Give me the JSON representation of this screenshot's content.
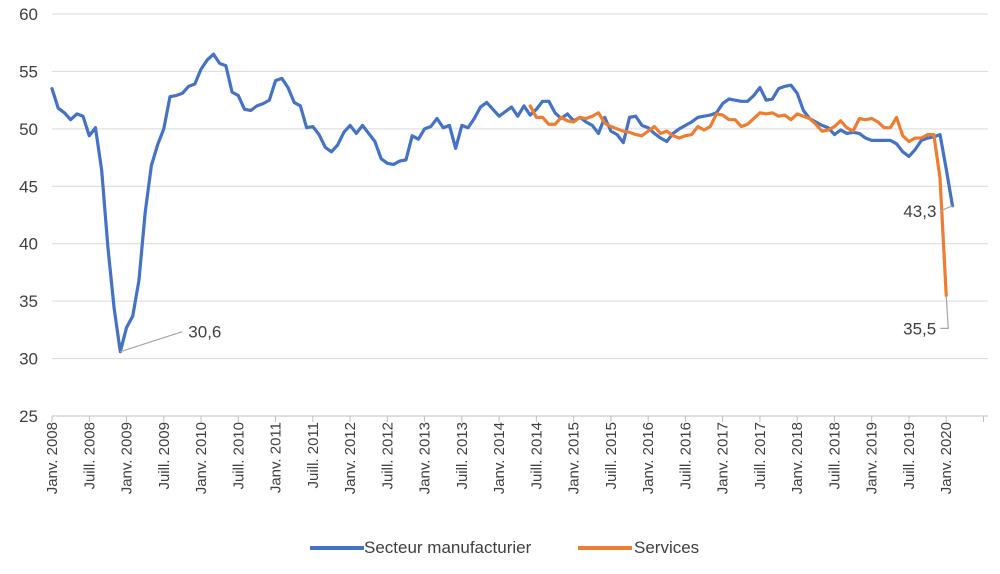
{
  "chart_data": {
    "type": "line",
    "title": "",
    "xlabel": "",
    "ylabel": "",
    "ylim": [
      25,
      60
    ],
    "yticks": [
      "25",
      "30",
      "35",
      "40",
      "45",
      "50",
      "55",
      "60"
    ],
    "grid": true,
    "legend_position": "bottom",
    "x_tick_labels": [
      "Janv. 2008",
      "Juill. 2008",
      "Janv. 2009",
      "Juill. 2009",
      "Janv. 2010",
      "Juill. 2010",
      "Janv. 2011",
      "Juill. 2011",
      "Janv. 2012",
      "Juill. 2012",
      "Janv. 2013",
      "Juill. 2013",
      "Janv. 2014",
      "Juill. 2014",
      "Janv. 2015",
      "Juill. 2015",
      "Janv. 2016",
      "Juill. 2016",
      "Janv. 2017",
      "Juill. 2017",
      "Janv. 2018",
      "Juill. 2018",
      "Janv. 2019",
      "Juill. 2019",
      "Janv. 2020"
    ],
    "series": [
      {
        "name": "Secteur manufacturier",
        "color": "#4472C4",
        "start": "2008-01",
        "values": [
          53.5,
          51.8,
          51.4,
          50.8,
          51.3,
          51.1,
          49.4,
          50.1,
          46.4,
          39.7,
          34.4,
          30.6,
          32.7,
          33.7,
          36.8,
          42.7,
          46.8,
          48.6,
          50.0,
          52.8,
          52.9,
          53.1,
          53.7,
          53.9,
          55.2,
          56.0,
          56.5,
          55.7,
          55.5,
          53.2,
          52.9,
          51.7,
          51.6,
          52.0,
          52.2,
          52.5,
          54.2,
          54.4,
          53.6,
          52.3,
          52.0,
          50.1,
          50.2,
          49.5,
          48.4,
          48.0,
          48.6,
          49.7,
          50.3,
          49.6,
          50.3,
          49.6,
          48.9,
          47.4,
          47.0,
          46.9,
          47.2,
          47.3,
          49.4,
          49.1,
          50.0,
          50.2,
          50.9,
          50.1,
          50.3,
          48.3,
          50.3,
          50.1,
          50.9,
          51.9,
          52.3,
          51.7,
          51.1,
          51.5,
          51.9,
          51.1,
          52.0,
          51.2,
          51.7,
          52.4,
          52.4,
          51.4,
          50.9,
          51.3,
          50.7,
          51.0,
          50.6,
          50.3,
          49.6,
          51.0,
          49.8,
          49.5,
          48.8,
          51.0,
          51.1,
          50.3,
          50.1,
          49.6,
          49.2,
          48.9,
          49.6,
          50.0,
          50.3,
          50.6,
          51.0,
          51.1,
          51.2,
          51.4,
          52.2,
          52.6,
          52.5,
          52.4,
          52.4,
          52.9,
          53.6,
          52.5,
          52.6,
          53.5,
          53.7,
          53.8,
          53.1,
          51.6,
          50.9,
          50.6,
          50.3,
          50.1,
          49.5,
          49.9,
          49.6,
          49.7,
          49.6,
          49.2,
          49.0,
          49.0,
          49.0,
          49.0,
          48.7,
          48.0,
          47.6,
          48.2,
          49.0,
          49.2,
          49.3,
          49.5,
          46.5,
          43.3
        ]
      },
      {
        "name": "Services",
        "color": "#ED7D31",
        "start": "2014-06",
        "values": [
          52.0,
          51.0,
          51.0,
          50.4,
          50.4,
          51.0,
          50.7,
          50.6,
          51.0,
          50.9,
          51.1,
          51.4,
          50.5,
          50.2,
          50.0,
          49.8,
          49.7,
          49.5,
          49.4,
          49.8,
          50.2,
          49.6,
          49.8,
          49.4,
          49.2,
          49.4,
          49.5,
          50.2,
          49.9,
          50.2,
          51.3,
          51.2,
          50.8,
          50.8,
          50.2,
          50.4,
          50.9,
          51.4,
          51.3,
          51.4,
          51.1,
          51.2,
          50.8,
          51.3,
          51.1,
          50.9,
          50.4,
          49.8,
          49.9,
          50.2,
          50.7,
          50.1,
          49.8,
          50.9,
          50.8,
          50.9,
          50.6,
          50.1,
          50.1,
          51.0,
          49.4,
          48.9,
          49.2,
          49.2,
          49.5,
          49.5,
          45.7,
          35.5
        ]
      }
    ],
    "annotations": [
      {
        "text": "30,6",
        "series": 0,
        "point_index": 11
      },
      {
        "text": "43,3",
        "series": 0,
        "point_index": 145
      },
      {
        "text": "35,5",
        "series": 1,
        "point_index": 67
      }
    ]
  }
}
